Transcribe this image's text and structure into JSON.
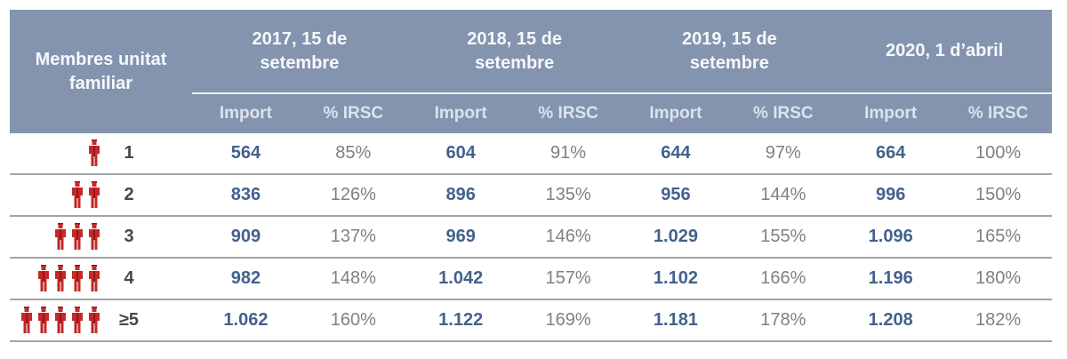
{
  "chart_data": {
    "type": "table",
    "row_header_title": "Membres unitat familiar",
    "column_groups": [
      {
        "label": "2017, 15 de setembre"
      },
      {
        "label": "2018, 15 de setembre"
      },
      {
        "label": "2019, 15 de setembre"
      },
      {
        "label": "2020, 1 d’abril"
      }
    ],
    "sub_columns": [
      "Import",
      "% IRSC"
    ],
    "rows": [
      {
        "members_label": "1",
        "person_icons": 1,
        "values": [
          "564",
          "85%",
          "604",
          "91%",
          "644",
          "97%",
          "664",
          "100%"
        ]
      },
      {
        "members_label": "2",
        "person_icons": 2,
        "values": [
          "836",
          "126%",
          "896",
          "135%",
          "956",
          "144%",
          "996",
          "150%"
        ]
      },
      {
        "members_label": "3",
        "person_icons": 3,
        "values": [
          "909",
          "137%",
          "969",
          "146%",
          "1.029",
          "155%",
          "1.096",
          "165%"
        ]
      },
      {
        "members_label": "4",
        "person_icons": 4,
        "values": [
          "982",
          "148%",
          "1.042",
          "157%",
          "1.102",
          "166%",
          "1.196",
          "180%"
        ]
      },
      {
        "members_label": "≥5",
        "person_icons": 5,
        "values": [
          "1.062",
          "160%",
          "1.122",
          "169%",
          "1.181",
          "178%",
          "1.208",
          "182%"
        ]
      }
    ]
  },
  "colors": {
    "header_background": "#8494AE",
    "header_text": "#F6F8FB",
    "subheader_text": "#DCE3EF",
    "header_divider_line": "#EDF1F6",
    "import_value_text": "#44618D",
    "irsc_value_text": "#7F7F86",
    "member_label_text": "#474747",
    "row_separator": "#A0A5AC",
    "person_icon_red": "#C62828",
    "person_icon_dark_red": "#871414"
  }
}
